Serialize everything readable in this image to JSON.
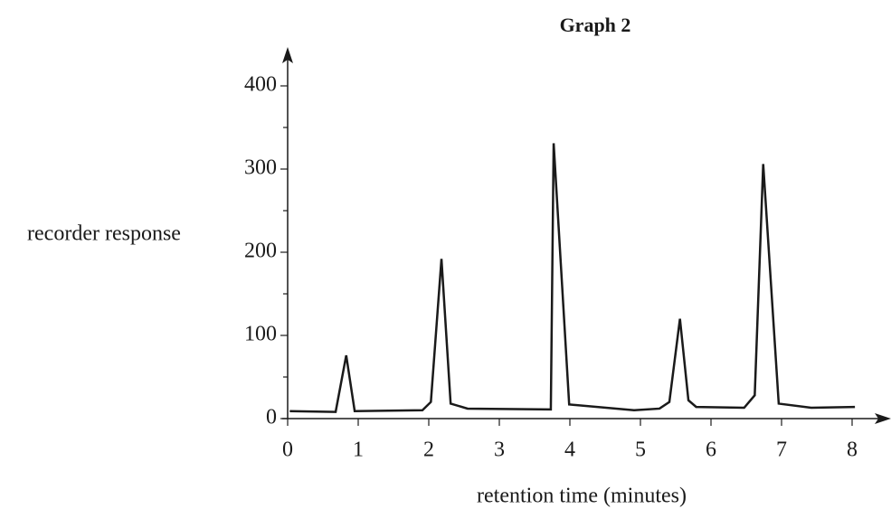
{
  "chart_data": {
    "type": "line",
    "title": "Graph 2",
    "x_label": "retention time (minutes)",
    "y_label": "recorder response",
    "series": [
      {
        "color": "#1a1a1a",
        "x": [
          0.03,
          0.68,
          0.83,
          0.95,
          1.91,
          2.03,
          2.18,
          2.31,
          2.55,
          3.73,
          3.77,
          3.99,
          4.91,
          5.27,
          5.41,
          5.56,
          5.68,
          5.79,
          6.47,
          6.62,
          6.74,
          6.96,
          7.42,
          8.04
        ],
        "values": [
          9,
          8,
          76,
          9,
          10,
          20,
          192,
          18,
          12,
          11,
          331,
          17,
          10,
          12,
          20,
          120,
          22,
          14,
          13,
          28,
          306,
          18,
          13,
          14
        ]
      }
    ],
    "xlim": [
      0,
      8
    ],
    "xticks": [
      0,
      1,
      2,
      3,
      4,
      5,
      6,
      7,
      8
    ],
    "ylim": [
      0,
      400
    ],
    "yticks": [
      0,
      100,
      200,
      300,
      400
    ],
    "yminorticks": [
      50,
      150,
      250,
      350
    ]
  }
}
